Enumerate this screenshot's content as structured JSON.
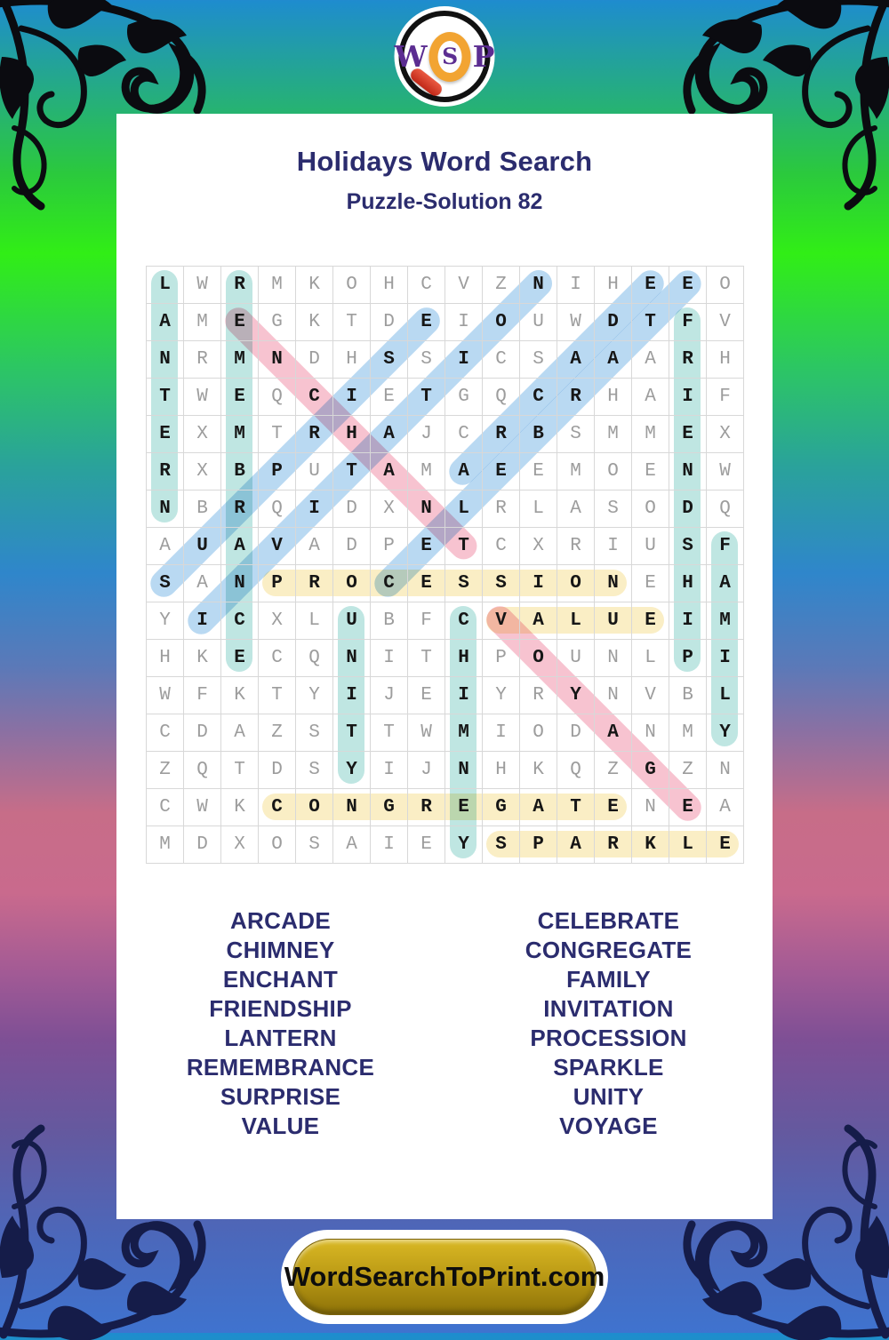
{
  "logo": {
    "letters": [
      "W",
      "S",
      "P"
    ],
    "icon": "magnifying-glass-icon"
  },
  "header": {
    "title": "Holidays Word Search",
    "subtitle": "Puzzle-Solution 82"
  },
  "grid": {
    "size": 16,
    "rows": [
      "LWRMKOHCVZNIHEEO",
      "AMEGKTDEIOUWDTFV",
      "NRMNDHSSICSAAARH",
      "TWEQCIETGQCRHAIF",
      "EXMTRHAJCRBSMMEX",
      "RXBPUTAMAEEMOENW",
      "NBRQIDXNLRLASODQ",
      "AUAVADPETCXRIUSF",
      "SANPROCESSIONEHA",
      "YICXLUBFCVALUEIM",
      "HKECQNITHPOUNLPI",
      "WFKTYIJEIYRYNVBL",
      "CDAZSTTWMIODANMY",
      "ZQTDSYIJNHKQZGZN",
      "CWKCONGREGATENEA",
      "MDXOSAIEYSPARKLE"
    ]
  },
  "placements": [
    {
      "word": "PROCESSION",
      "row": 9,
      "col": 4,
      "dir": "across",
      "color": "yellow"
    },
    {
      "word": "VALUE",
      "row": 10,
      "col": 10,
      "dir": "across",
      "color": "yellow"
    },
    {
      "word": "CONGREGATE",
      "row": 15,
      "col": 4,
      "dir": "across",
      "color": "yellow"
    },
    {
      "word": "SPARKLE",
      "row": 16,
      "col": 10,
      "dir": "across",
      "color": "yellow"
    },
    {
      "word": "ENCHANT",
      "row": 2,
      "col": 3,
      "dir": "diag-down",
      "color": "pink"
    },
    {
      "word": "VOYAGE",
      "row": 10,
      "col": 10,
      "dir": "diag-down",
      "color": "pink"
    },
    {
      "word": "SURPRISE",
      "row": 9,
      "col": 1,
      "dir": "diag-up",
      "color": "blue"
    },
    {
      "word": "INVITATION",
      "row": 10,
      "col": 2,
      "dir": "diag-up",
      "color": "blue"
    },
    {
      "word": "CELEBRATE",
      "row": 9,
      "col": 7,
      "dir": "diag-up",
      "color": "blue"
    },
    {
      "word": "ARCADE",
      "row": 6,
      "col": 9,
      "dir": "diag-up",
      "color": "blue"
    },
    {
      "word": "LANTERN",
      "row": 1,
      "col": 1,
      "dir": "down",
      "color": "teal"
    },
    {
      "word": "REMEMBRANCE",
      "row": 1,
      "col": 3,
      "dir": "down",
      "color": "teal"
    },
    {
      "word": "FRIENDSHIP",
      "row": 2,
      "col": 15,
      "dir": "down",
      "color": "teal"
    },
    {
      "word": "UNITY",
      "row": 10,
      "col": 6,
      "dir": "down",
      "color": "teal"
    },
    {
      "word": "CHIMNEY",
      "row": 10,
      "col": 9,
      "dir": "down",
      "color": "teal"
    },
    {
      "word": "FAMILY",
      "row": 8,
      "col": 16,
      "dir": "down",
      "color": "teal"
    }
  ],
  "highlight_colors": {
    "teal": "#bfe6e2",
    "blue": "#b9d9f2",
    "pink": "#f7c3d0",
    "yellow": "#faeec5"
  },
  "word_lists": {
    "left": [
      "ARCADE",
      "CHIMNEY",
      "ENCHANT",
      "FRIENDSHIP",
      "LANTERN",
      "REMEMBRANCE",
      "SURPRISE",
      "VALUE"
    ],
    "right": [
      "CELEBRATE",
      "CONGREGATE",
      "FAMILY",
      "INVITATION",
      "PROCESSION",
      "SPARKLE",
      "UNITY",
      "VOYAGE"
    ]
  },
  "footer": {
    "button_label": "WordSearchToPrint.com"
  },
  "colors": {
    "title_navy": "#2b2c6e",
    "logo_purple": "#5b2d91",
    "button_gold": "#bd9c16"
  }
}
